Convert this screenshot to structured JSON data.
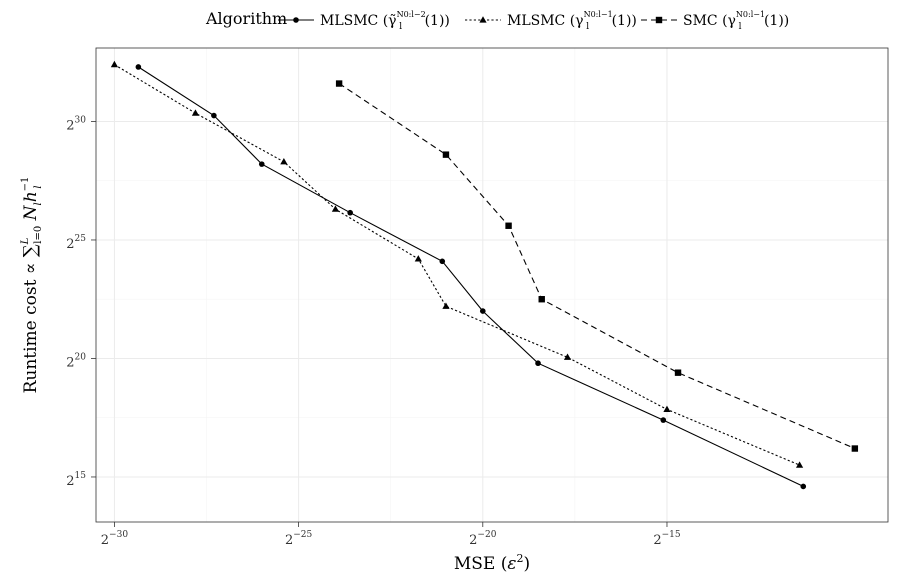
{
  "chart_data": {
    "type": "line",
    "legend": {
      "title": "Algorithm",
      "position": "top",
      "entries": [
        {
          "label": "MLSMC (γ̃",
          "sub": "l",
          "sup": "N0:l−2",
          "tail": "(1))"
        },
        {
          "label": "MLSMC (γ",
          "sub": "l",
          "sup": "N0:l−1",
          "tail": "(1))"
        },
        {
          "label": "SMC (γ",
          "sub": "l",
          "sup": "N0:l−1",
          "tail": "(1))"
        }
      ]
    },
    "xlabel": "MSE (ε²)",
    "ylabel": "Runtime cost ∝ ∑ N h",
    "ylabel_parts": {
      "prefix": "Runtime cost ∝ ",
      "sum": "∑",
      "sum_sub": "l=0",
      "sum_sup": "L",
      "n": "N",
      "n_sub": "l",
      "h": "h",
      "h_sub": "l",
      "h_sup": "−1"
    },
    "x_scale": "log2",
    "y_scale": "log2",
    "xlim": [
      -30.5,
      -9.0
    ],
    "ylim": [
      13.1,
      33.1
    ],
    "x_ticks": [
      {
        "base": "2",
        "exp": "−30",
        "v": -30
      },
      {
        "base": "2",
        "exp": "−25",
        "v": -25
      },
      {
        "base": "2",
        "exp": "−20",
        "v": -20
      },
      {
        "base": "2",
        "exp": "−15",
        "v": -15
      }
    ],
    "y_ticks": [
      {
        "base": "2",
        "exp": "15",
        "v": 15
      },
      {
        "base": "2",
        "exp": "20",
        "v": 20
      },
      {
        "base": "2",
        "exp": "25",
        "v": 25
      },
      {
        "base": "2",
        "exp": "30",
        "v": 30
      }
    ],
    "grid": true,
    "series": [
      {
        "name": "MLSMC (γ̃_l^{N0:l−2}(1))",
        "marker": "circle",
        "line": "solid",
        "x": [
          -29.35,
          -27.3,
          -26.0,
          -23.6,
          -21.1,
          -20.0,
          -18.5,
          -15.1,
          -11.3
        ],
        "y": [
          32.3,
          30.25,
          28.2,
          26.15,
          24.1,
          22.0,
          19.8,
          17.4,
          14.6
        ]
      },
      {
        "name": "MLSMC (γ_l^{N0:l−1}(1))",
        "marker": "triangle",
        "line": "dotted",
        "x": [
          -30.0,
          -27.8,
          -25.4,
          -24.0,
          -21.75,
          -21.0,
          -17.7,
          -15.0,
          -11.4
        ],
        "y": [
          32.4,
          30.35,
          28.3,
          26.3,
          24.2,
          22.2,
          20.05,
          17.85,
          15.5
        ]
      },
      {
        "name": "SMC (γ_l^{N0:l−1}(1))",
        "marker": "square",
        "line": "dashed",
        "x": [
          -23.9,
          -21.0,
          -19.3,
          -18.4,
          -14.7,
          -9.9
        ],
        "y": [
          31.6,
          28.6,
          25.6,
          22.5,
          19.4,
          16.2
        ]
      }
    ]
  }
}
